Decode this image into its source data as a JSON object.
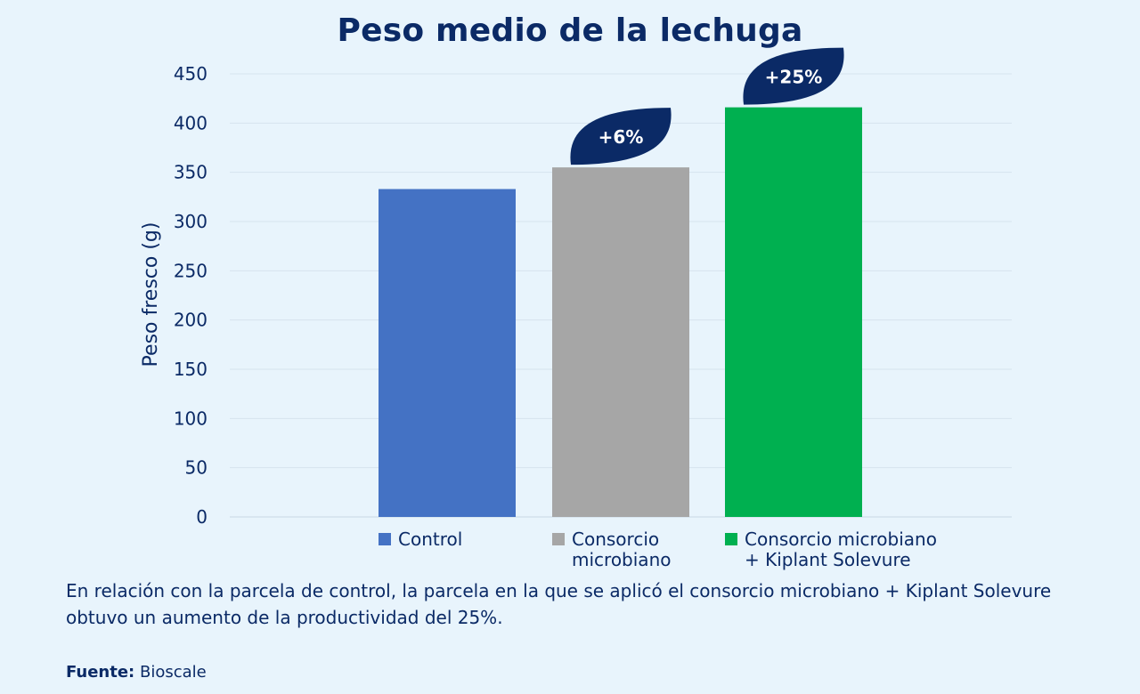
{
  "chart_data": {
    "type": "bar",
    "title": "Peso medio de la lechuga",
    "ylabel": "Peso fresco (g)",
    "xlabel": "",
    "ylim": [
      0,
      450
    ],
    "yticks": [
      0,
      50,
      100,
      150,
      200,
      250,
      300,
      350,
      400,
      450
    ],
    "grid": true,
    "categories": [
      "Control",
      "Consorcio microbiano",
      "Consorcio microbiano + Kiplant Solevure"
    ],
    "legend_labels": [
      "Control",
      "Consorcio\nmicrobiano",
      "Consorcio microbiano\n+ Kiplant Solevure"
    ],
    "values": [
      333,
      355,
      416
    ],
    "colors": [
      "#4472c4",
      "#a6a6a6",
      "#00b050"
    ],
    "annotations": [
      "",
      "+6%",
      "+25%"
    ],
    "annotation_color": "#0b2a66",
    "legend_position": "bottom"
  },
  "caption": "En relación con la parcela de control, la parcela en la que se aplicó el consorcio microbiano + Kiplant Solevure obtuvo un aumento de la productividad del 25%.",
  "source": {
    "label": "Fuente:",
    "value": "Bioscale"
  }
}
